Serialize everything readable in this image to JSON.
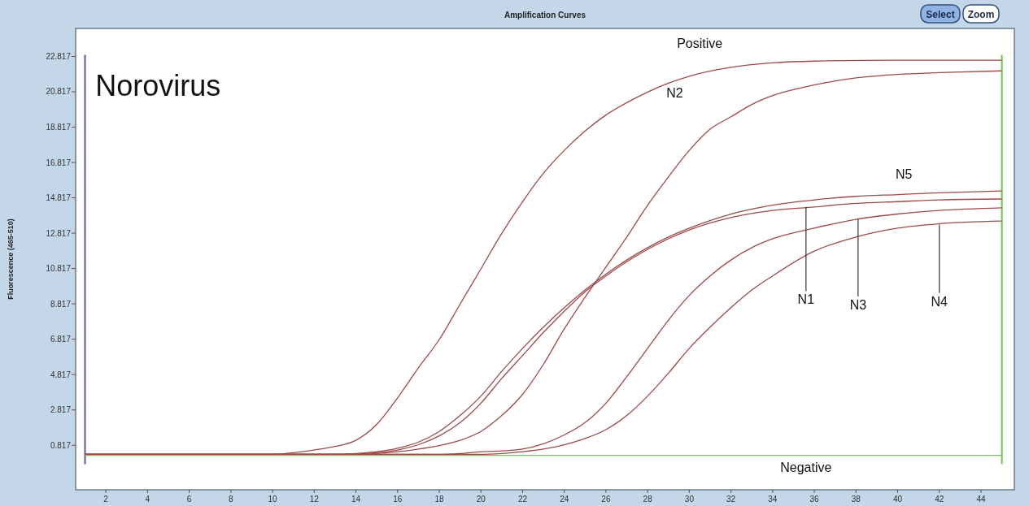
{
  "chart_data": {
    "type": "line",
    "title": "Amplification Curves",
    "ylabel": "Fluorescence (465-510)",
    "annotations": [
      "Norovirus",
      "Select",
      "Zoom",
      "Positive",
      "N2",
      "N5",
      {
        "text": "N1",
        "x": 35.6,
        "y": 14.3
      },
      {
        "text": "N3",
        "x": 38.1,
        "y": 13.6
      },
      {
        "text": "N4",
        "x": 42.0,
        "y": 13.3
      },
      "Negative"
    ],
    "xlim": [
      0.55,
      45.6
    ],
    "ylim": [
      -1.7,
      24.4
    ],
    "xticks": [
      2,
      4,
      6,
      8,
      10,
      12,
      14,
      16,
      18,
      20,
      22,
      24,
      26,
      28,
      30,
      32,
      34,
      36,
      38,
      40,
      42,
      44
    ],
    "yticks": [
      0.817,
      2.817,
      4.817,
      6.817,
      8.817,
      10.817,
      12.817,
      14.817,
      16.817,
      18.817,
      20.817,
      22.817
    ],
    "grid": false,
    "marker": "none",
    "line_style": "solid",
    "ref_lines": [
      {
        "axis": "x",
        "value": 1,
        "color": "#5a5a9a"
      },
      {
        "axis": "x",
        "value": 45,
        "color": "#66cc44"
      }
    ],
    "series": [
      {
        "color": "#9e4a4a",
        "x": [
          1,
          4,
          7,
          10,
          11,
          12,
          13,
          14,
          15,
          16,
          17,
          18,
          19,
          20,
          21,
          22,
          23,
          24,
          25,
          26,
          27,
          28,
          29,
          30,
          32,
          34,
          36,
          40,
          45
        ],
        "values": [
          0.3,
          0.3,
          0.3,
          0.3,
          0.4,
          0.55,
          0.75,
          1.1,
          2.0,
          3.5,
          5.2,
          6.8,
          8.8,
          10.8,
          12.8,
          14.6,
          16.2,
          17.5,
          18.6,
          19.5,
          20.2,
          20.8,
          21.3,
          21.7,
          22.2,
          22.45,
          22.55,
          22.6,
          22.6
        ]
      },
      {
        "color": "#9e4a4a",
        "x": [
          1,
          5,
          10,
          14,
          15,
          16,
          17,
          18,
          19,
          20,
          21,
          22,
          23,
          24,
          25,
          26,
          27,
          28,
          29,
          30,
          31,
          32,
          33,
          34,
          36,
          38,
          40,
          42,
          45
        ],
        "values": [
          0.3,
          0.3,
          0.3,
          0.3,
          0.35,
          0.45,
          0.6,
          0.8,
          1.1,
          1.6,
          2.5,
          3.7,
          5.4,
          7.4,
          9.2,
          10.9,
          12.6,
          14.4,
          16.0,
          17.5,
          18.7,
          19.4,
          20.1,
          20.6,
          21.2,
          21.6,
          21.8,
          21.9,
          22.0
        ]
      },
      {
        "color": "#9e4a4a",
        "x": [
          1,
          5,
          10,
          13,
          14,
          15,
          16,
          17,
          18,
          19,
          20,
          21,
          22,
          23,
          24,
          25,
          26,
          27,
          28,
          29,
          30,
          32,
          34,
          36,
          38,
          40,
          42,
          45
        ],
        "values": [
          0.3,
          0.3,
          0.3,
          0.3,
          0.35,
          0.45,
          0.65,
          1.0,
          1.6,
          2.5,
          3.6,
          5.0,
          6.3,
          7.5,
          8.6,
          9.6,
          10.5,
          11.3,
          12.0,
          12.6,
          13.1,
          13.9,
          14.4,
          14.7,
          14.9,
          15.0,
          15.1,
          15.2
        ]
      },
      {
        "color": "#9e4a4a",
        "x": [
          1,
          5,
          10,
          13,
          14,
          15,
          16,
          17,
          18,
          19,
          20,
          21,
          22,
          23,
          24,
          25,
          26,
          27,
          28,
          29,
          30,
          32,
          34,
          36,
          38,
          40,
          42,
          45
        ],
        "values": [
          0.3,
          0.3,
          0.3,
          0.3,
          0.33,
          0.4,
          0.55,
          0.85,
          1.35,
          2.1,
          3.2,
          4.6,
          5.9,
          7.2,
          8.4,
          9.5,
          10.4,
          11.2,
          11.9,
          12.5,
          13.0,
          13.7,
          14.1,
          14.3,
          14.5,
          14.6,
          14.7,
          14.75
        ]
      },
      {
        "color": "#9e4a4a",
        "x": [
          1,
          5,
          10,
          15,
          18,
          19,
          20,
          21,
          22,
          23,
          24,
          25,
          26,
          27,
          28,
          29,
          30,
          31,
          32,
          33,
          34,
          36,
          38,
          40,
          42,
          45
        ],
        "values": [
          0.3,
          0.3,
          0.3,
          0.3,
          0.3,
          0.35,
          0.45,
          0.5,
          0.6,
          0.9,
          1.4,
          2.1,
          3.2,
          4.7,
          6.3,
          7.9,
          9.3,
          10.4,
          11.3,
          12.0,
          12.5,
          13.1,
          13.6,
          13.9,
          14.1,
          14.25
        ]
      },
      {
        "color": "#9e4a4a",
        "x": [
          1,
          5,
          10,
          15,
          20,
          21,
          22,
          23,
          24,
          25,
          26,
          27,
          28,
          29,
          30,
          31,
          32,
          33,
          34,
          36,
          38,
          40,
          42,
          45
        ],
        "values": [
          0.3,
          0.3,
          0.3,
          0.3,
          0.3,
          0.35,
          0.45,
          0.6,
          0.85,
          1.2,
          1.7,
          2.5,
          3.6,
          4.9,
          6.3,
          7.5,
          8.6,
          9.6,
          10.4,
          11.8,
          12.6,
          13.1,
          13.35,
          13.5
        ]
      },
      {
        "color": "#66cc44",
        "x": [
          1,
          5,
          10,
          15,
          20,
          25,
          30,
          35,
          40,
          45
        ],
        "values": [
          0.25,
          0.25,
          0.25,
          0.25,
          0.25,
          0.25,
          0.25,
          0.25,
          0.25,
          0.25
        ]
      }
    ]
  }
}
